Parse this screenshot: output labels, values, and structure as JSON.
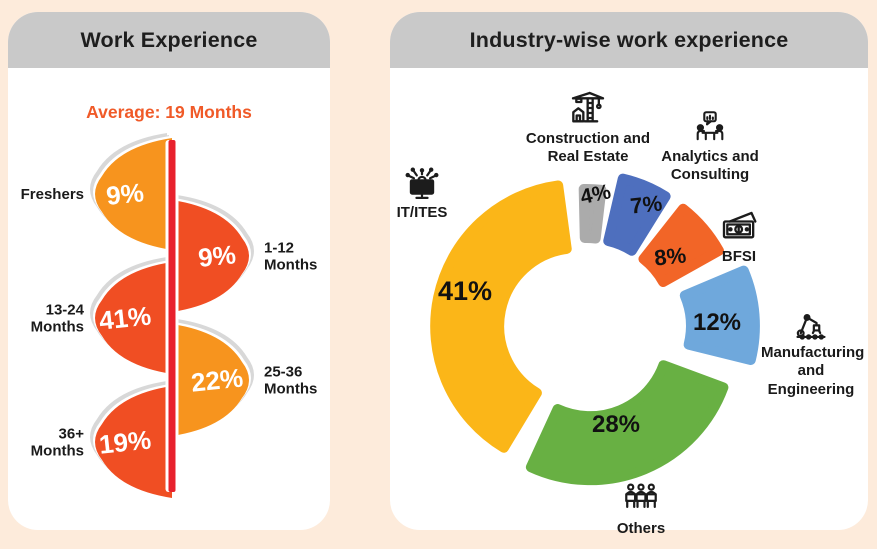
{
  "page": {
    "background_color": "#fdebdb",
    "header_color": "#c9c9c9",
    "panel_color": "#ffffff"
  },
  "left_panel": {
    "title": "Work Experience",
    "average_label": "Average: 19 Months",
    "accent_color": "#f05a28",
    "line_color": "#e8212d"
  },
  "right_panel": {
    "title": "Industry-wise work experience"
  },
  "chart_data": [
    {
      "type": "bar",
      "style": "alternating-petal-flow",
      "title": "Work Experience",
      "annotation": "Average: 19 Months",
      "categories": [
        "Freshers",
        "1-12 Months",
        "13-24 Months",
        "25-36 Months",
        "36+ Months"
      ],
      "values": [
        9,
        9,
        41,
        22,
        19
      ],
      "unit": "%",
      "sides": [
        "left",
        "right",
        "left",
        "right",
        "left"
      ],
      "colors": [
        "#f7941e",
        "#f04e23",
        "#f04e23",
        "#f7941e",
        "#f04e23"
      ],
      "value_text_color": "#ffffff"
    },
    {
      "type": "pie",
      "subtype": "donut-exploded",
      "title": "Industry-wise work experience",
      "unit": "%",
      "legend_position": "around",
      "slices": [
        {
          "label": "Construction and Real Estate",
          "value": 4,
          "color": "#ababab",
          "icon": "crane-icon"
        },
        {
          "label": "Analytics and Consulting",
          "value": 7,
          "color": "#4e6fbe",
          "icon": "meeting-icon"
        },
        {
          "label": "BFSI",
          "value": 8,
          "color": "#f26527",
          "icon": "banknotes-icon"
        },
        {
          "label": "Manufacturing and Engineering",
          "value": 12,
          "color": "#6fa8dc",
          "icon": "robot-arm-icon"
        },
        {
          "label": "Others",
          "value": 28,
          "color": "#68b043",
          "icon": "people-group-icon"
        },
        {
          "label": "IT/ITES",
          "value": 41,
          "color": "#fbb618",
          "icon": "computer-icon"
        }
      ]
    }
  ]
}
